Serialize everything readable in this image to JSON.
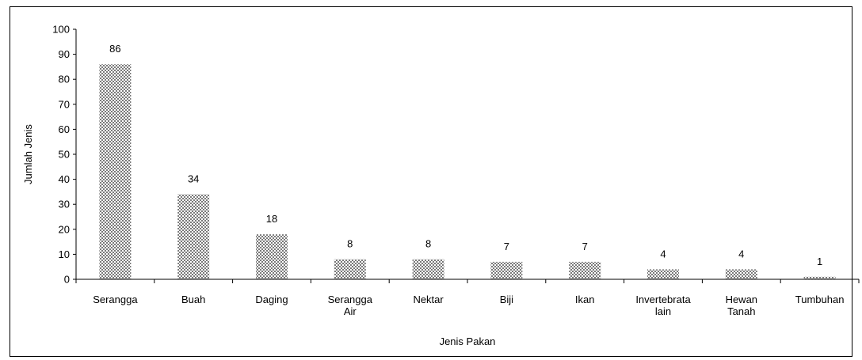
{
  "chart_data": {
    "type": "bar",
    "title": "",
    "xlabel": "Jenis Pakan",
    "ylabel": "Jumlah Jenis",
    "ylim": [
      0,
      100
    ],
    "yticks": [
      0,
      10,
      20,
      30,
      40,
      50,
      60,
      70,
      80,
      90,
      100
    ],
    "grid": false,
    "legend": "none",
    "bar_pattern": "checkered",
    "bar_color": "#7a7a7a",
    "categories": [
      [
        "Serangga"
      ],
      [
        "Buah"
      ],
      [
        "Daging"
      ],
      [
        "Serangga",
        "Air"
      ],
      [
        "Nektar"
      ],
      [
        "Biji"
      ],
      [
        "Ikan"
      ],
      [
        "Invertebrata",
        "lain"
      ],
      [
        "Hewan",
        "Tanah"
      ],
      [
        "Tumbuhan"
      ]
    ],
    "values": [
      86,
      34,
      18,
      8,
      8,
      7,
      7,
      4,
      4,
      1
    ],
    "data_labels": [
      "86",
      "34",
      "18",
      "8",
      "8",
      "7",
      "7",
      "4",
      "4",
      "1"
    ]
  }
}
